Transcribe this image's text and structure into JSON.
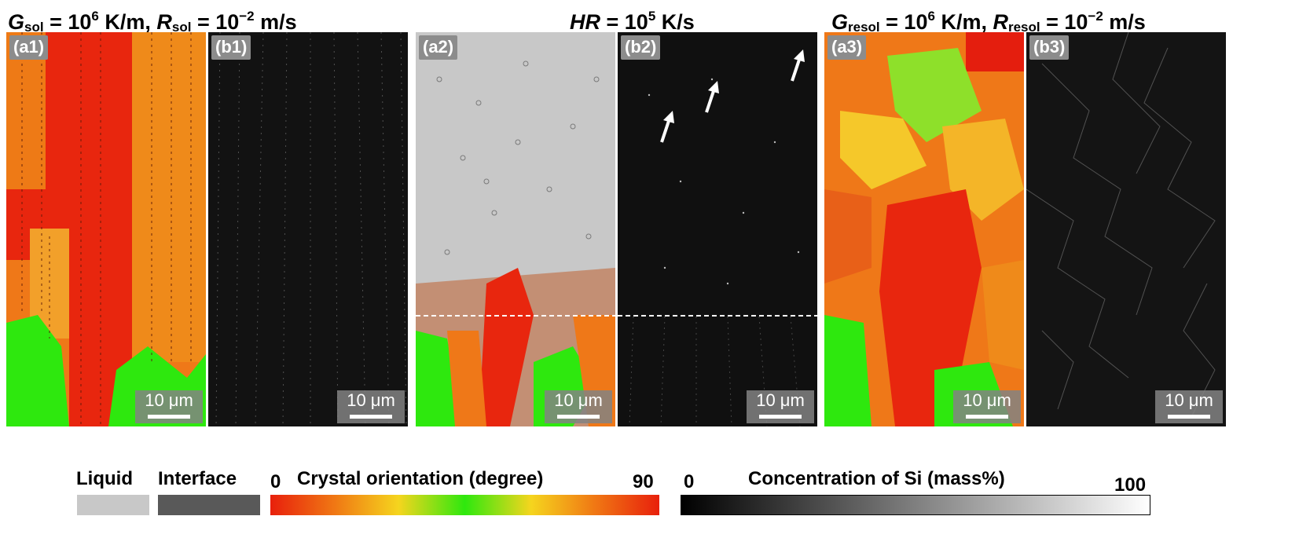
{
  "headings": {
    "left": {
      "g_var": "G",
      "g_sub": "sol",
      "g_eq": " = 10",
      "g_exp": "6",
      "g_unit": " K/m, ",
      "r_var": "R",
      "r_sub": "sol",
      "r_eq": " = 10",
      "r_exp": "−2",
      "r_unit": " m/s"
    },
    "center": {
      "var": "HR",
      "eq": " = 10",
      "exp": "5",
      "unit": " K/s"
    },
    "right": {
      "g_var": "G",
      "g_sub": "resol",
      "g_eq": " = 10",
      "g_exp": "6",
      "g_unit": " K/m, ",
      "r_var": "R",
      "r_sub": "resol",
      "r_eq": " = 10",
      "r_exp": "−2",
      "r_unit": " m/s"
    }
  },
  "panels": [
    {
      "label": "(a1)",
      "scale_bar": "10 μm"
    },
    {
      "label": "(b1)",
      "scale_bar": "10 μm"
    },
    {
      "label": "(a2)",
      "scale_bar": "10 μm"
    },
    {
      "label": "(b2)",
      "scale_bar": "10 μm"
    },
    {
      "label": "(a3)",
      "scale_bar": "10 μm"
    },
    {
      "label": "(b3)",
      "scale_bar": "10 μm"
    }
  ],
  "legend": {
    "liquid": "Liquid",
    "interface": "Interface",
    "orientation_min": "0",
    "orientation_title": "Crystal orientation (degree)",
    "orientation_max": "90",
    "conc_min": "0",
    "conc_title": "Concentration of Si (mass%)",
    "conc_max": "100"
  },
  "colors": {
    "liquid": "#c8c8c8",
    "interface": "#595959",
    "red": "#e8200c",
    "orange": "#f07a14",
    "yellow": "#f5d51e",
    "green": "#2ee80e"
  }
}
